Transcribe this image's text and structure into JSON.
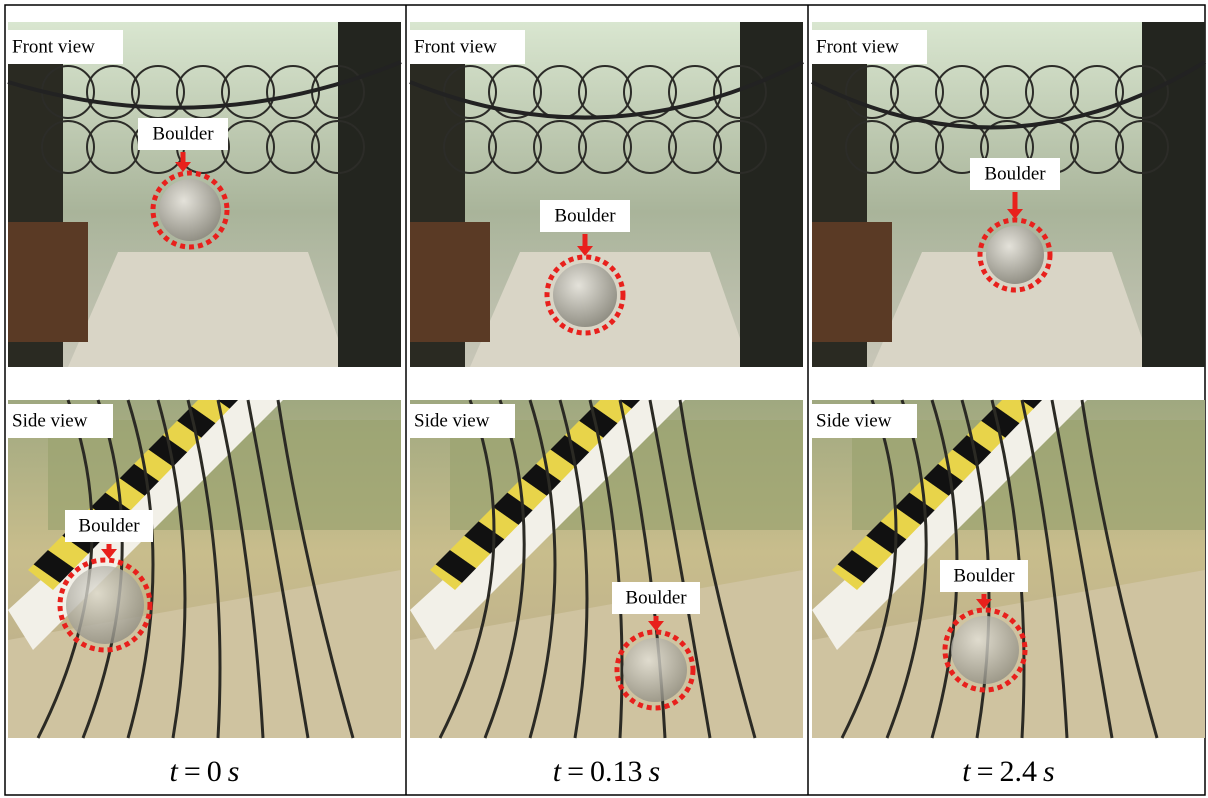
{
  "panels": [
    {
      "front": {
        "view_label": "Front view",
        "annotation": "Boulder"
      },
      "side": {
        "view_label": "Side view",
        "annotation": "Boulder"
      },
      "time": {
        "symbol": "t",
        "equals": "=",
        "value": 0,
        "unit": "s"
      }
    },
    {
      "front": {
        "view_label": "Front view",
        "annotation": "Boulder"
      },
      "side": {
        "view_label": "Side view",
        "annotation": "Boulder"
      },
      "time": {
        "symbol": "t",
        "equals": "=",
        "value": 0.13,
        "unit": "s"
      }
    },
    {
      "front": {
        "view_label": "Front view",
        "annotation": "Boulder"
      },
      "side": {
        "view_label": "Side view",
        "annotation": "Boulder"
      },
      "time": {
        "symbol": "t",
        "equals": "=",
        "value": 2.4,
        "unit": "s"
      }
    }
  ]
}
